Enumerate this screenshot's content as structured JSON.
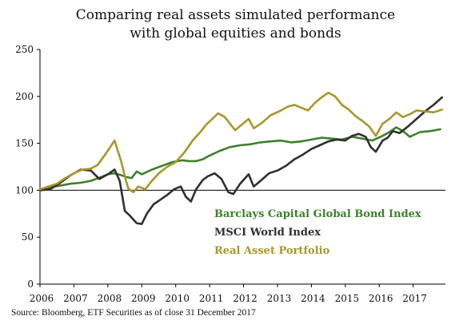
{
  "title": {
    "line1": "Comparing real assets simulated performance",
    "line2": "with global equities and bonds"
  },
  "source": "Source: Bloomberg, ETF Securities as of close 31 December 2017",
  "chart_data": {
    "type": "line",
    "ylim": [
      0,
      250
    ],
    "yticks": [
      0,
      50,
      100,
      150,
      200,
      250
    ],
    "xlim": [
      2006,
      2017.95
    ],
    "xticks": [
      2006,
      2007,
      2008,
      2009,
      2010,
      2011,
      2012,
      2013,
      2014,
      2015,
      2016,
      2017
    ],
    "xticklabels": [
      "2006",
      "2007",
      "2008",
      "2009",
      "2010",
      "2011",
      "2012",
      "2013",
      "2014",
      "2015",
      "2016",
      "2017"
    ],
    "reference_line": 100,
    "grid": false,
    "legend_position": "lower-right",
    "colors": {
      "bond": "#3f7f2a",
      "world": "#2f2f2f",
      "real": "#a8962a",
      "axis": "#000000",
      "reference": "#000000"
    },
    "series": [
      {
        "name": "Barclays Capital Global Bond Index",
        "key": "bond",
        "x": [
          2006.0,
          2006.3,
          2006.6,
          2006.9,
          2007.2,
          2007.5,
          2007.8,
          2008.0,
          2008.2,
          2008.4,
          2008.55,
          2008.7,
          2008.85,
          2009.0,
          2009.3,
          2009.6,
          2009.9,
          2010.2,
          2010.4,
          2010.6,
          2010.8,
          2011.0,
          2011.3,
          2011.6,
          2011.9,
          2012.2,
          2012.5,
          2012.8,
          2013.1,
          2013.4,
          2013.7,
          2014.0,
          2014.3,
          2014.6,
          2014.9,
          2015.2,
          2015.5,
          2015.8,
          2016.1,
          2016.3,
          2016.5,
          2016.7,
          2016.9,
          2017.2,
          2017.5,
          2017.8
        ],
        "values": [
          101,
          103,
          105,
          107,
          108,
          110,
          114,
          117,
          118,
          116,
          114,
          113,
          120,
          117,
          122,
          126,
          130,
          132,
          131,
          131,
          133,
          137,
          142,
          146,
          148,
          149,
          151,
          152,
          153,
          151,
          152,
          154,
          156,
          155,
          154,
          157,
          155,
          153,
          158,
          162,
          167,
          163,
          157,
          162,
          163,
          165
        ]
      },
      {
        "name": "MSCI World Index",
        "key": "world",
        "x": [
          2006.0,
          2006.3,
          2006.6,
          2006.9,
          2007.2,
          2007.5,
          2007.75,
          2008.0,
          2008.2,
          2008.35,
          2008.5,
          2008.65,
          2008.85,
          2009.0,
          2009.15,
          2009.35,
          2009.55,
          2009.75,
          2009.95,
          2010.15,
          2010.3,
          2010.45,
          2010.6,
          2010.8,
          2010.95,
          2011.15,
          2011.35,
          2011.55,
          2011.7,
          2011.9,
          2012.15,
          2012.3,
          2012.5,
          2012.75,
          2013.0,
          2013.25,
          2013.5,
          2013.75,
          2014.0,
          2014.25,
          2014.5,
          2014.75,
          2015.0,
          2015.2,
          2015.4,
          2015.6,
          2015.75,
          2015.9,
          2016.1,
          2016.25,
          2016.4,
          2016.6,
          2016.85,
          2017.1,
          2017.35,
          2017.6,
          2017.85
        ],
        "values": [
          100,
          101,
          108,
          116,
          122,
          121,
          112,
          117,
          122,
          110,
          78,
          73,
          65,
          64,
          75,
          85,
          90,
          95,
          101,
          104,
          93,
          88,
          101,
          111,
          115,
          118,
          112,
          98,
          96,
          107,
          117,
          104,
          110,
          118,
          121,
          126,
          133,
          138,
          144,
          148,
          152,
          154,
          153,
          158,
          160,
          157,
          146,
          141,
          153,
          156,
          163,
          161,
          168,
          176,
          184,
          191,
          199
        ]
      },
      {
        "name": "Real Asset Portfolio",
        "key": "real",
        "x": [
          2006.0,
          2006.25,
          2006.5,
          2006.75,
          2007.0,
          2007.25,
          2007.5,
          2007.7,
          2007.9,
          2008.05,
          2008.2,
          2008.4,
          2008.5,
          2008.6,
          2008.75,
          2008.9,
          2009.1,
          2009.3,
          2009.5,
          2009.75,
          2010.0,
          2010.25,
          2010.5,
          2010.75,
          2010.9,
          2011.05,
          2011.25,
          2011.45,
          2011.6,
          2011.75,
          2011.95,
          2012.15,
          2012.3,
          2012.55,
          2012.8,
          2013.05,
          2013.3,
          2013.5,
          2013.7,
          2013.9,
          2014.1,
          2014.3,
          2014.5,
          2014.7,
          2014.9,
          2015.1,
          2015.3,
          2015.5,
          2015.7,
          2015.9,
          2016.1,
          2016.3,
          2016.5,
          2016.7,
          2016.9,
          2017.1,
          2017.35,
          2017.6,
          2017.85
        ],
        "values": [
          101,
          104,
          107,
          113,
          118,
          122,
          123,
          127,
          137,
          145,
          153,
          130,
          115,
          102,
          98,
          104,
          101,
          110,
          118,
          125,
          130,
          140,
          153,
          163,
          170,
          175,
          182,
          178,
          171,
          164,
          170,
          176,
          166,
          172,
          180,
          184,
          189,
          191,
          188,
          185,
          193,
          199,
          204,
          200,
          191,
          186,
          179,
          174,
          168,
          158,
          171,
          176,
          183,
          178,
          181,
          185,
          184,
          183,
          186
        ]
      }
    ]
  }
}
